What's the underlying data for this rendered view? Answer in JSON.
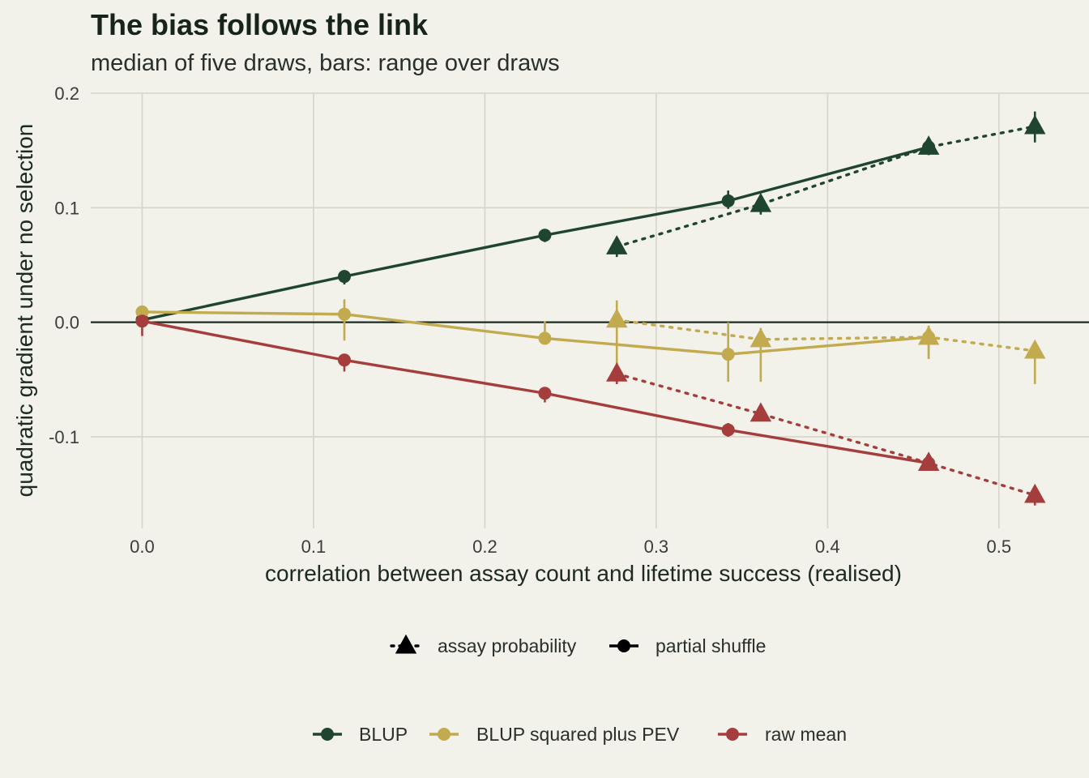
{
  "chart_data": {
    "type": "line",
    "title": "The bias follows the link",
    "subtitle": "median of five draws, bars: range over draws",
    "xlabel": "correlation between assay count and lifetime success (realised)",
    "ylabel": "quadratic gradient under no selection",
    "xlim": [
      -0.03,
      0.545
    ],
    "ylim": [
      -0.18,
      0.2
    ],
    "x_ticks": [
      0.0,
      0.1,
      0.2,
      0.3,
      0.4,
      0.5
    ],
    "x_tick_labels": [
      "0.0",
      "0.1",
      "0.2",
      "0.3",
      "0.4",
      "0.5"
    ],
    "y_ticks": [
      -0.1,
      0.0,
      0.1,
      0.2
    ],
    "y_tick_labels": [
      "-0.1",
      "0.0",
      "0.1",
      "0.2"
    ],
    "grid": true,
    "reference_line_y": 0,
    "colors": {
      "BLUP": "#1f4430",
      "BLUP squared plus PEV": "#c2aa4f",
      "raw mean": "#a63d3d",
      "background": "#f2f1ea",
      "grid": "#d7d5c7"
    },
    "series": [
      {
        "name": "BLUP",
        "method": "partial shuffle",
        "marker": "circle",
        "linestyle": "solid",
        "x": [
          0.0,
          0.118,
          0.235,
          0.342,
          0.459
        ],
        "y": [
          0.002,
          0.04,
          0.076,
          0.106,
          0.153
        ],
        "ymin": [
          0.0,
          0.033,
          0.07,
          0.099,
          0.146
        ],
        "ymax": [
          0.004,
          0.045,
          0.078,
          0.115,
          0.157
        ]
      },
      {
        "name": "BLUP",
        "method": "assay probability",
        "marker": "triangle",
        "linestyle": "dotted",
        "x": [
          0.277,
          0.361,
          0.459,
          0.521
        ],
        "y": [
          0.066,
          0.103,
          0.153,
          0.171
        ],
        "ymin": [
          0.057,
          0.094,
          0.146,
          0.157
        ],
        "ymax": [
          0.072,
          0.108,
          0.157,
          0.184
        ]
      },
      {
        "name": "BLUP squared plus PEV",
        "method": "partial shuffle",
        "marker": "circle",
        "linestyle": "solid",
        "x": [
          0.0,
          0.118,
          0.235,
          0.342,
          0.459
        ],
        "y": [
          0.009,
          0.007,
          -0.014,
          -0.028,
          -0.013
        ],
        "ymin": [
          0.004,
          -0.016,
          -0.016,
          -0.052,
          -0.032
        ],
        "ymax": [
          0.011,
          0.02,
          0.001,
          0.0,
          -0.003
        ]
      },
      {
        "name": "BLUP squared plus PEV",
        "method": "assay probability",
        "marker": "triangle",
        "linestyle": "dotted",
        "x": [
          0.277,
          0.361,
          0.459,
          0.521
        ],
        "y": [
          0.002,
          -0.015,
          -0.013,
          -0.025
        ],
        "ymin": [
          -0.053,
          -0.052,
          -0.032,
          -0.054
        ],
        "ymax": [
          0.019,
          -0.005,
          -0.003,
          -0.02
        ]
      },
      {
        "name": "raw mean",
        "method": "partial shuffle",
        "marker": "circle",
        "linestyle": "solid",
        "x": [
          0.0,
          0.118,
          0.235,
          0.342,
          0.459
        ],
        "y": [
          0.001,
          -0.033,
          -0.062,
          -0.094,
          -0.123
        ],
        "ymin": [
          -0.012,
          -0.043,
          -0.07,
          -0.1,
          -0.128
        ],
        "ymax": [
          0.003,
          -0.03,
          -0.058,
          -0.088,
          -0.116
        ]
      },
      {
        "name": "raw mean",
        "method": "assay probability",
        "marker": "triangle",
        "linestyle": "dotted",
        "x": [
          0.277,
          0.361,
          0.459,
          0.521
        ],
        "y": [
          -0.045,
          -0.08,
          -0.123,
          -0.151
        ],
        "ymin": [
          -0.054,
          -0.083,
          -0.128,
          -0.16
        ],
        "ymax": [
          -0.04,
          -0.077,
          -0.116,
          -0.144
        ]
      }
    ],
    "legends": {
      "method": [
        {
          "label": "assay probability",
          "marker": "triangle",
          "linestyle": "dotted"
        },
        {
          "label": "partial shuffle",
          "marker": "circle",
          "linestyle": "solid"
        }
      ],
      "estimator": [
        {
          "label": "BLUP"
        },
        {
          "label": "BLUP squared plus PEV"
        },
        {
          "label": "raw mean"
        }
      ],
      "placement": "bottom"
    }
  }
}
